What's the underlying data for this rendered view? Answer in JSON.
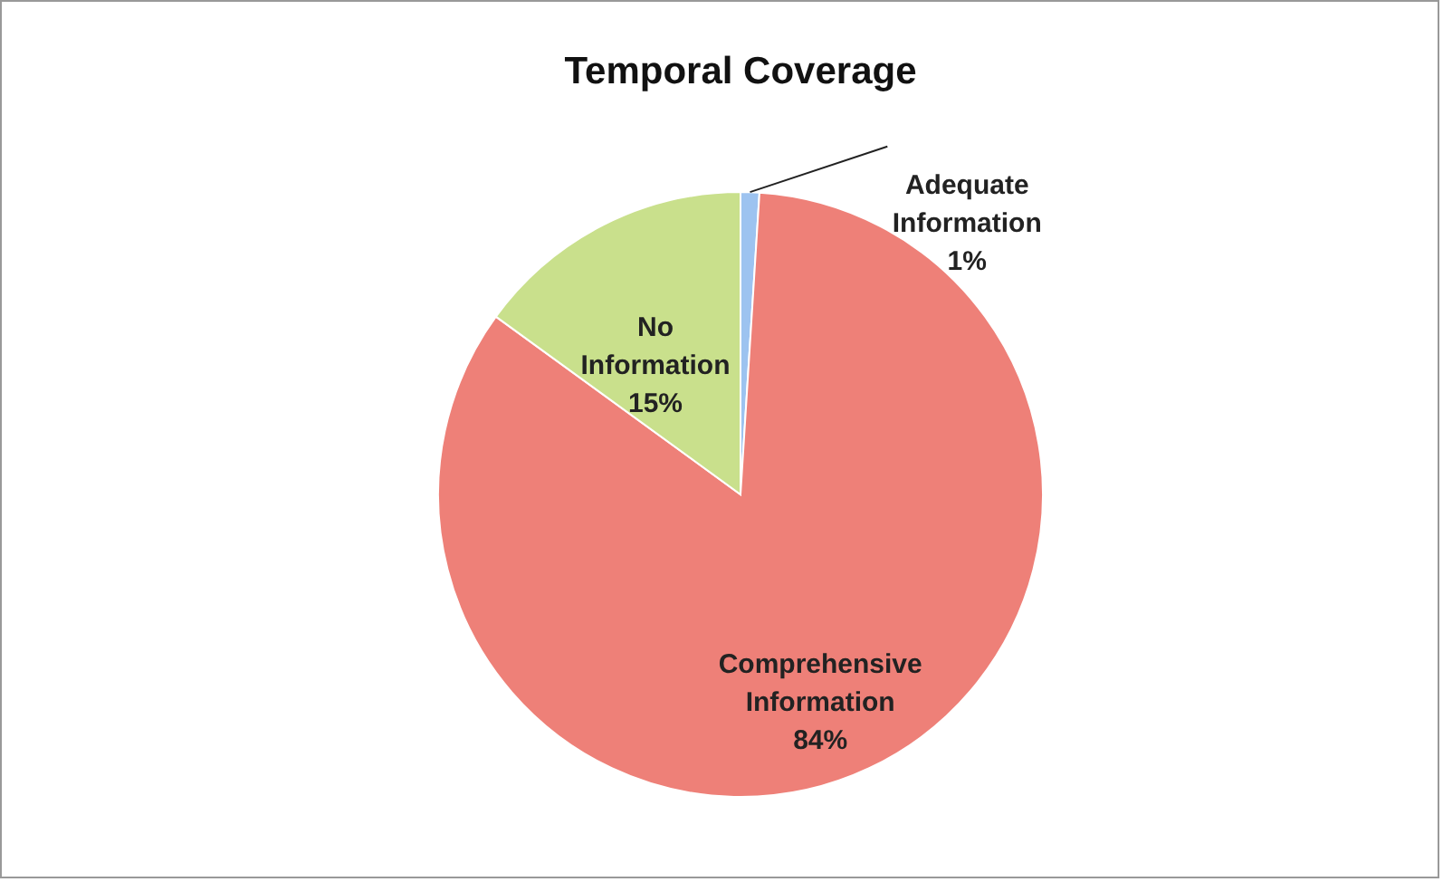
{
  "chart_data": {
    "type": "pie",
    "title": "Temporal Coverage",
    "categories": [
      "Adequate Information",
      "Comprehensive Information",
      "No Information"
    ],
    "values": [
      1,
      84,
      15
    ],
    "colors": [
      "#9dc3f0",
      "#ee8078",
      "#c9e08c"
    ],
    "value_labels": [
      "1%",
      "84%",
      "15%"
    ],
    "legend": false
  }
}
